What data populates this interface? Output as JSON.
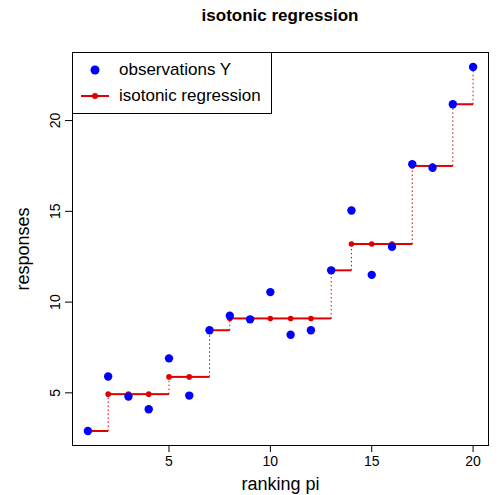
{
  "chart_data": {
    "type": "scatter",
    "title": "isotonic regression",
    "x_label": "ranking pi",
    "y_label": "responses",
    "x": [
      1,
      2,
      3,
      4,
      5,
      6,
      7,
      8,
      9,
      10,
      11,
      12,
      13,
      14,
      15,
      16,
      17,
      18,
      19,
      20
    ],
    "series": [
      {
        "name": "observations Y",
        "color": "#0000ff",
        "marker": "circle",
        "values": [
          2.9,
          5.9,
          4.8,
          4.1,
          6.9,
          4.85,
          8.45,
          9.25,
          9.05,
          10.55,
          8.2,
          8.45,
          11.75,
          15.05,
          11.5,
          13.05,
          17.6,
          17.4,
          20.9,
          22.95
        ]
      },
      {
        "name": "isotonic regression",
        "color": "#e00000",
        "type": "step",
        "marker": "circle",
        "values": [
          2.9,
          4.93,
          4.93,
          4.93,
          5.88,
          5.88,
          8.45,
          9.1,
          9.1,
          9.1,
          9.1,
          9.1,
          11.75,
          13.2,
          13.2,
          13.2,
          17.5,
          17.5,
          20.9,
          22.95
        ]
      }
    ],
    "xlim": [
      0.24,
      20.76
    ],
    "ylim": [
      2.1,
      23.75
    ],
    "xticks": [
      5,
      10,
      15,
      20
    ],
    "yticks": [
      5,
      10,
      15,
      20
    ],
    "legend": "top-left"
  }
}
